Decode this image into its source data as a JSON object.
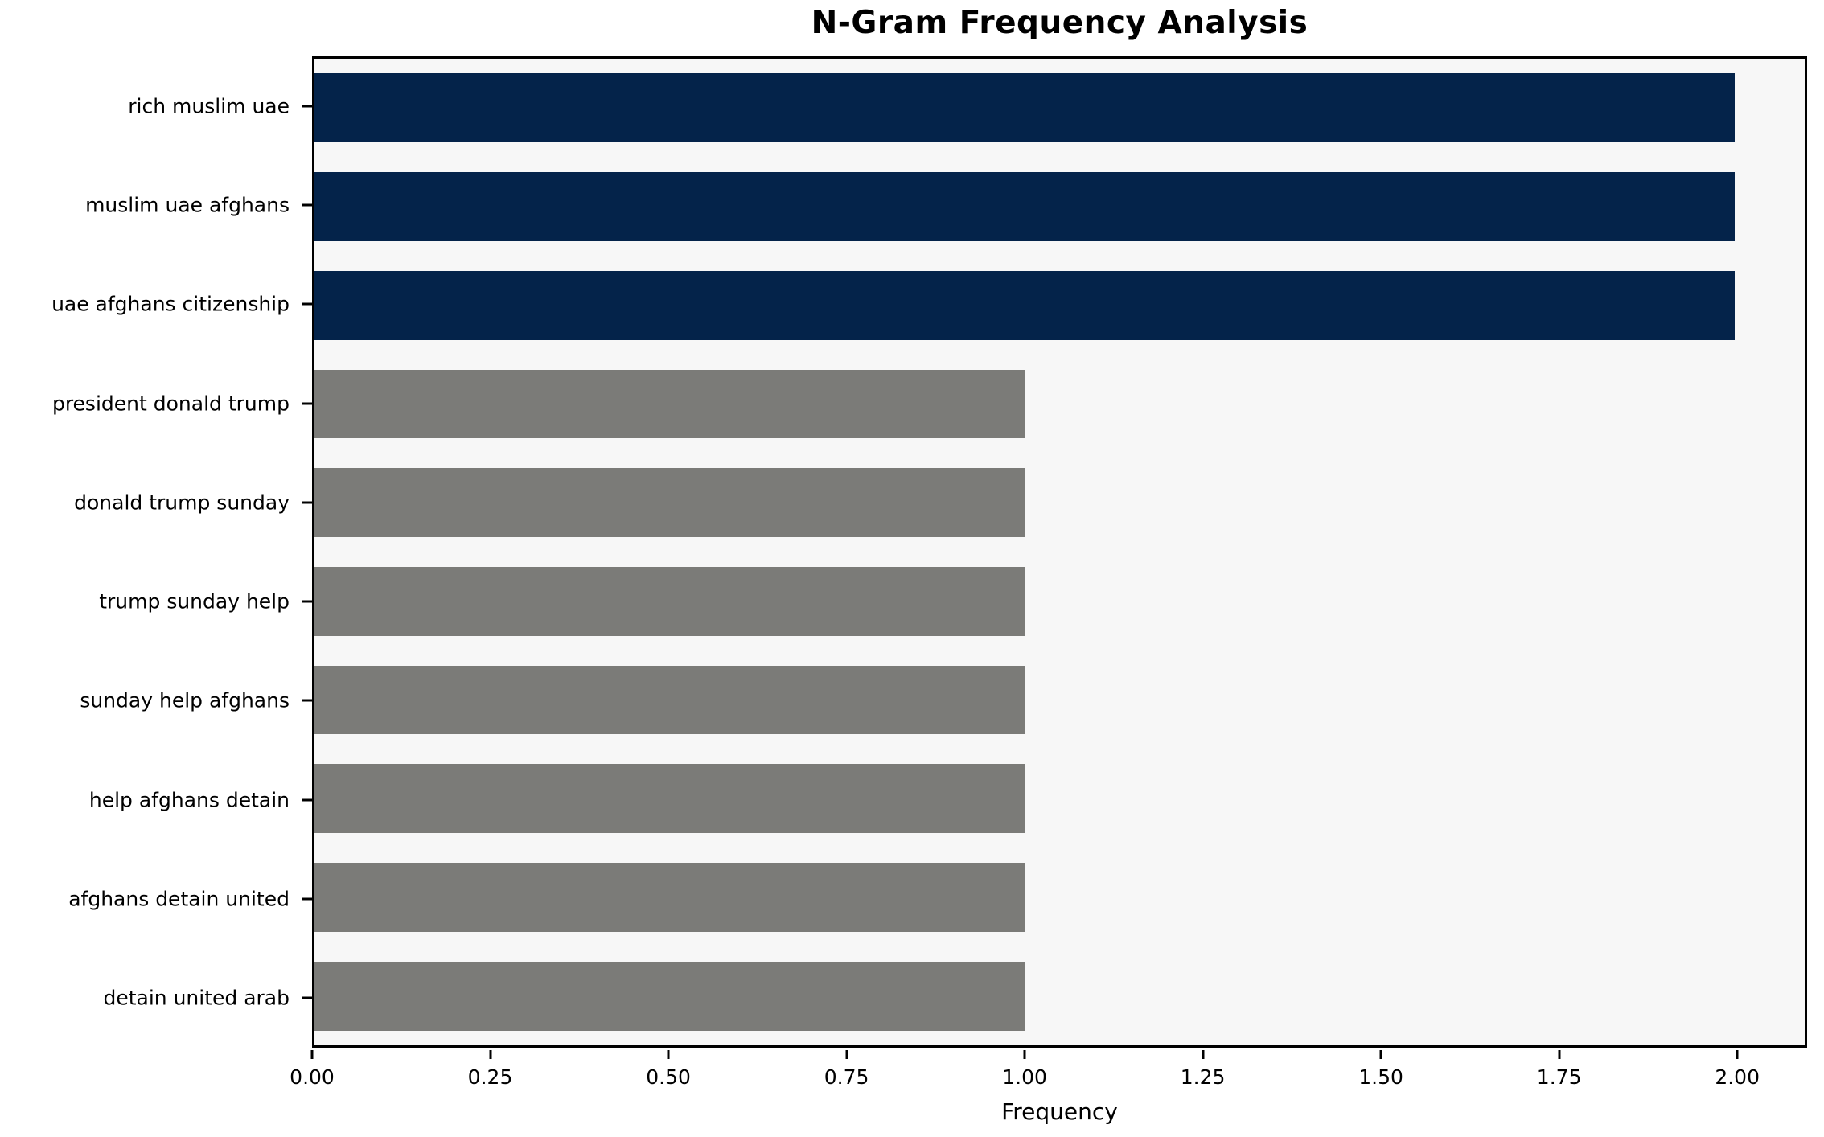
{
  "chart_data": {
    "type": "bar",
    "orientation": "horizontal",
    "title": "N-Gram Frequency Analysis",
    "xlabel": "Frequency",
    "ylabel": "",
    "categories": [
      "rich muslim uae",
      "muslim uae afghans",
      "uae afghans citizenship",
      "president donald trump",
      "donald trump sunday",
      "trump sunday help",
      "sunday help afghans",
      "help afghans detain",
      "afghans detain united",
      "detain united arab"
    ],
    "values": [
      2,
      2,
      2,
      1,
      1,
      1,
      1,
      1,
      1,
      1
    ],
    "bar_colors": [
      "#04234a",
      "#04234a",
      "#04234a",
      "#7b7b78",
      "#7b7b78",
      "#7b7b78",
      "#7b7b78",
      "#7b7b78",
      "#7b7b78",
      "#7b7b78"
    ],
    "xlim": [
      0,
      2.098
    ],
    "xtick_values": [
      0,
      0.25,
      0.5,
      0.75,
      1.0,
      1.25,
      1.5,
      1.75,
      2.0
    ],
    "xtick_labels": [
      "0.00",
      "0.25",
      "0.50",
      "0.75",
      "1.00",
      "1.25",
      "1.50",
      "1.75",
      "2.00"
    ],
    "grid": false,
    "legend": null,
    "colors": {
      "highlight_bar": "#04234a",
      "default_bar": "#7b7b78",
      "plot_background": "#f7f7f7",
      "figure_background": "#ffffff",
      "spine": "#000000",
      "text": "#000000"
    }
  }
}
